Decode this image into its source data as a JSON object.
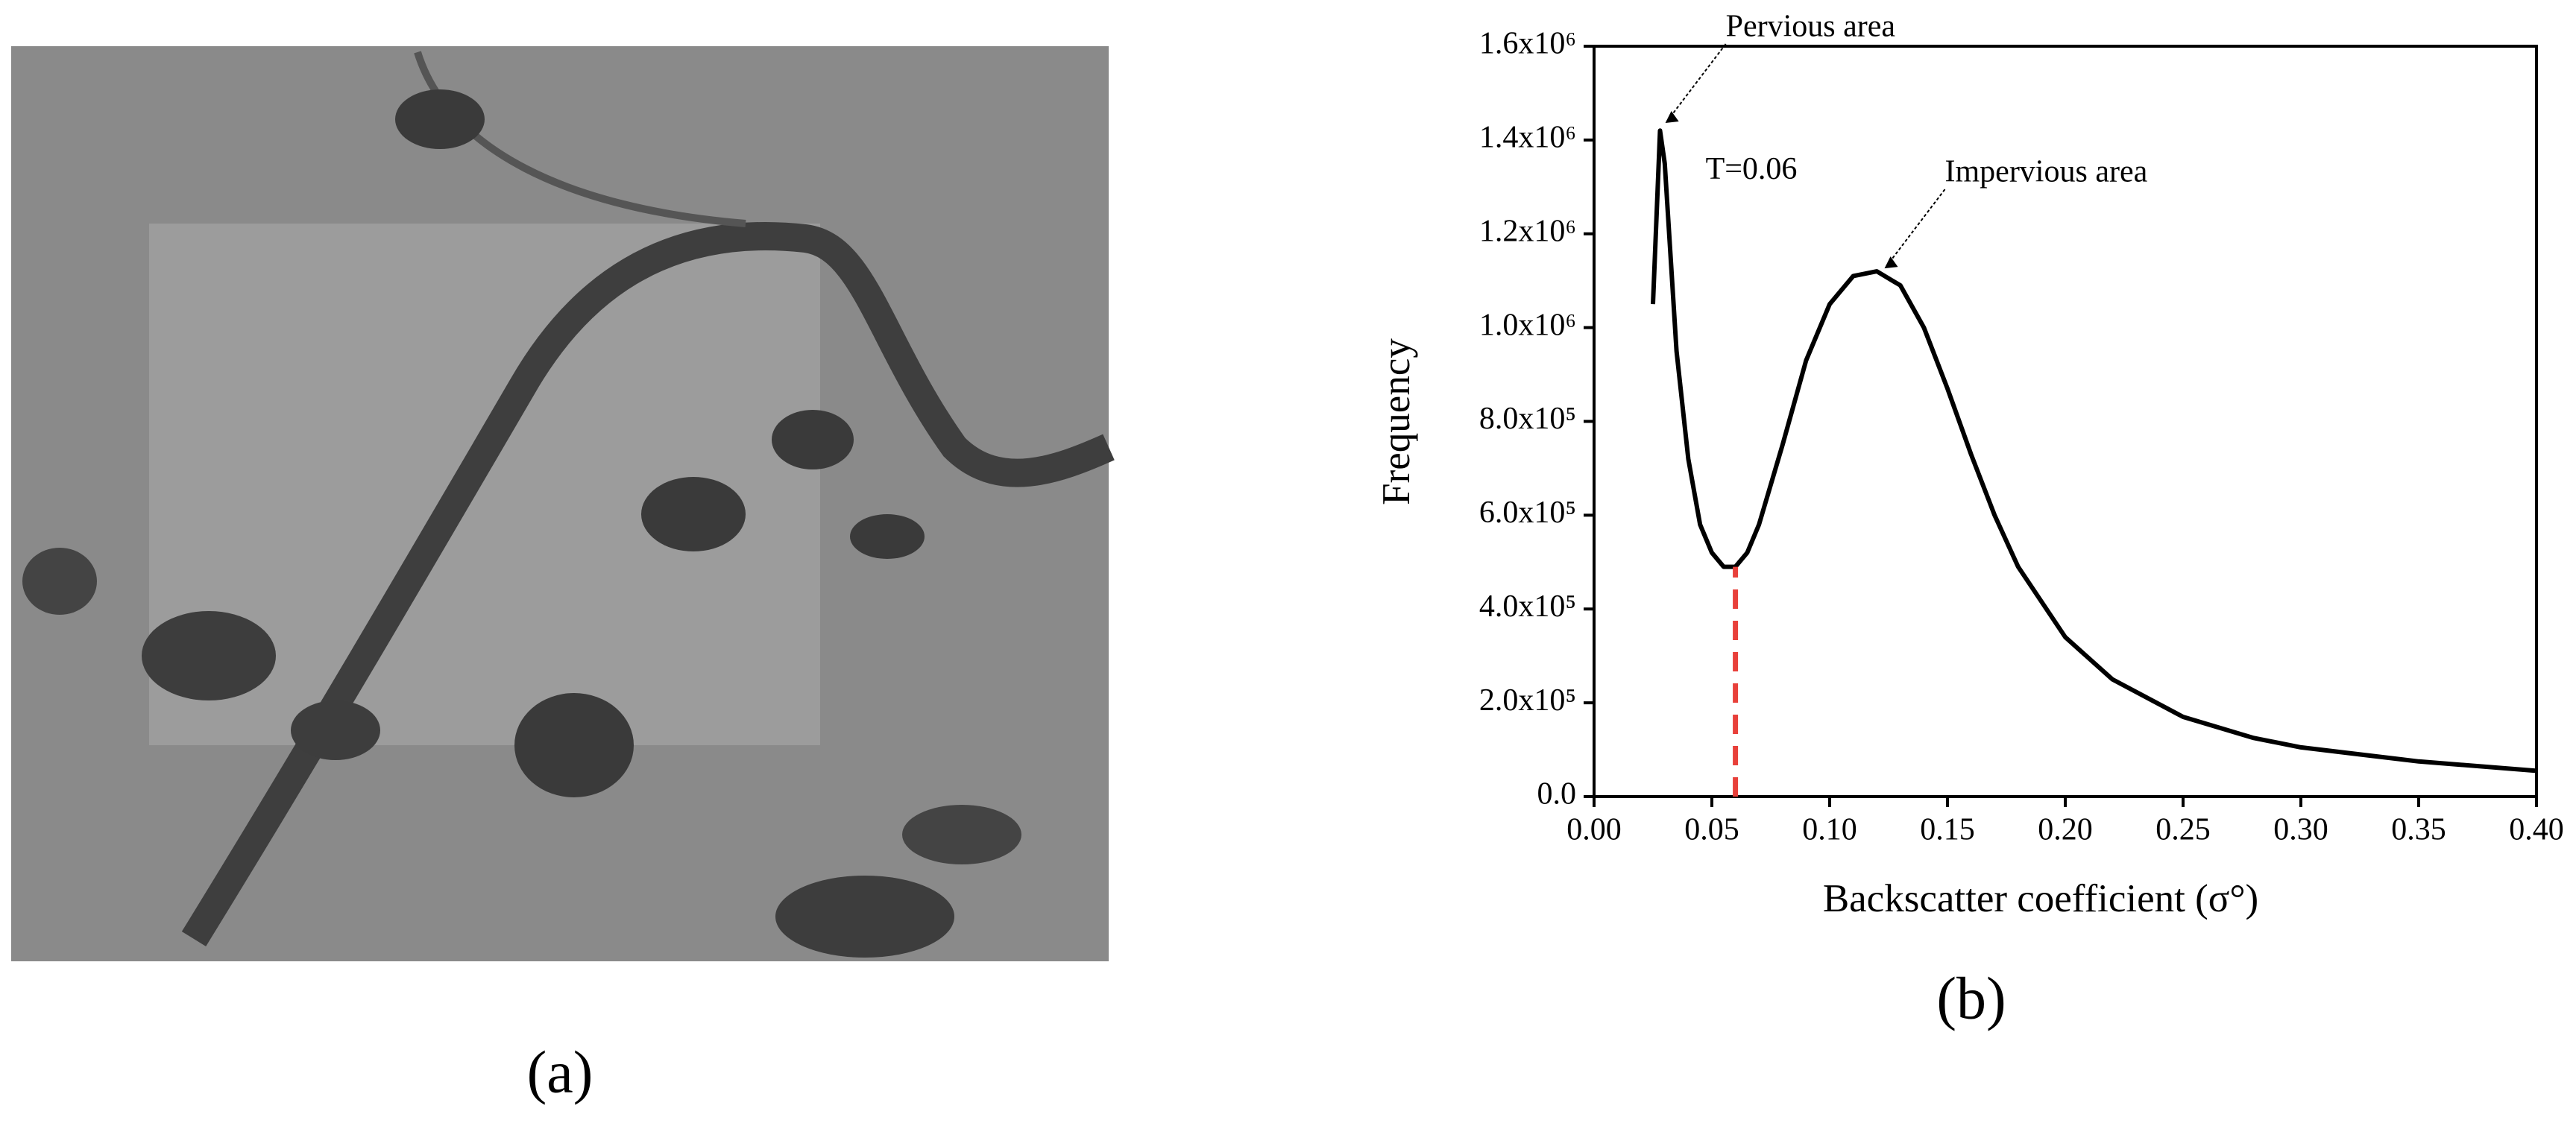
{
  "figure": {
    "label_a": "(a)",
    "label_b": "(b)"
  },
  "chart_data": {
    "type": "line",
    "xlabel": "Backscatter coefficient (σ°)",
    "ylabel": "Frequency",
    "x": [
      0.025,
      0.028,
      0.03,
      0.035,
      0.04,
      0.045,
      0.05,
      0.055,
      0.06,
      0.065,
      0.07,
      0.08,
      0.09,
      0.1,
      0.11,
      0.12,
      0.13,
      0.14,
      0.15,
      0.16,
      0.17,
      0.18,
      0.2,
      0.22,
      0.25,
      0.28,
      0.3,
      0.35,
      0.4
    ],
    "series": [
      {
        "color": "#000000",
        "values": [
          1050000,
          1420000,
          1350000,
          950000,
          720000,
          580000,
          520000,
          490000,
          490000,
          520000,
          580000,
          750000,
          930000,
          1050000,
          1110000,
          1120000,
          1090000,
          1000000,
          870000,
          730000,
          600000,
          490000,
          340000,
          250000,
          170000,
          125000,
          105000,
          75000,
          55000
        ]
      }
    ],
    "xlim": [
      0,
      0.4
    ],
    "ylim": [
      0,
      1600000
    ],
    "xticks": [
      {
        "value": 0,
        "label": "0.00"
      },
      {
        "value": 0.05,
        "label": "0.05"
      },
      {
        "value": 0.1,
        "label": "0.10"
      },
      {
        "value": 0.15,
        "label": "0.15"
      },
      {
        "value": 0.2,
        "label": "0.20"
      },
      {
        "value": 0.25,
        "label": "0.25"
      },
      {
        "value": 0.3,
        "label": "0.30"
      },
      {
        "value": 0.35,
        "label": "0.35"
      },
      {
        "value": 0.4,
        "label": "0.40"
      }
    ],
    "yticks": [
      {
        "value": 0,
        "label": "0.0"
      },
      {
        "value": 200000,
        "label": "2.0x10⁵"
      },
      {
        "value": 400000,
        "label": "4.0x10⁵"
      },
      {
        "value": 600000,
        "label": "6.0x10⁵"
      },
      {
        "value": 800000,
        "label": "8.0x10⁵"
      },
      {
        "value": 1000000,
        "label": "1.0x10⁶"
      },
      {
        "value": 1200000,
        "label": "1.2x10⁶"
      },
      {
        "value": 1400000,
        "label": "1.4x10⁶"
      },
      {
        "value": 1600000,
        "label": "1.6x10⁶"
      }
    ],
    "threshold": {
      "x": 0.06,
      "label": "T=0.06",
      "color": "#e8403a"
    },
    "annotations": [
      {
        "text": "Pervious area",
        "x": 0.029,
        "y": 1430000
      },
      {
        "text": "Impervious area",
        "x": 0.122,
        "y": 1120000
      }
    ]
  }
}
